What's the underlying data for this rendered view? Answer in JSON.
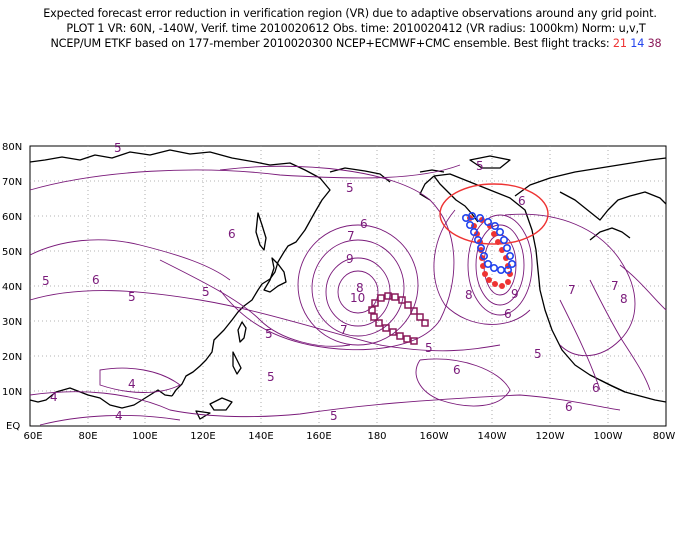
{
  "header": {
    "line1": "Expected forecast error reduction in verification region (VR) due to adaptive observations around any grid point.",
    "line2": "PLOT 1 VR: 60N, -140W, Verif. time 2010020612 Obs. time: 2010020412 (VR radius: 1000km) Norm: u,v,T",
    "line3_prefix": "NCEP/UM ETKF based on 177-member 2010020300 NCEP+ECMWF+CMC ensemble. Best flight tracks:",
    "tracks": [
      {
        "label": "21",
        "color": "#ee3333"
      },
      {
        "label": "14",
        "color": "#2244ee"
      },
      {
        "label": "38",
        "color": "#8a1a5a"
      }
    ]
  },
  "map": {
    "lat_labels": [
      "80N",
      "70N",
      "60N",
      "50N",
      "40N",
      "30N",
      "20N",
      "10N",
      "EQ"
    ],
    "lon_labels": [
      "60E",
      "80E",
      "100E",
      "120E",
      "140E",
      "160E",
      "180",
      "160W",
      "140W",
      "120W",
      "100W",
      "80W"
    ],
    "contour_color": "#7a1a7a",
    "contour_labels": [
      "5",
      "6",
      "7",
      "8",
      "9",
      "10",
      "5",
      "6",
      "7",
      "8",
      "9",
      "6",
      "5",
      "6",
      "6",
      "7",
      "8",
      "7",
      "6",
      "5",
      "4",
      "4",
      "4",
      "5",
      "5",
      "6",
      "5",
      "5",
      "5",
      "5",
      "6",
      "5"
    ],
    "verification_region": {
      "center_lat": 60,
      "center_lon": -140,
      "radius_km": 1000,
      "color": "#ee3333"
    }
  }
}
